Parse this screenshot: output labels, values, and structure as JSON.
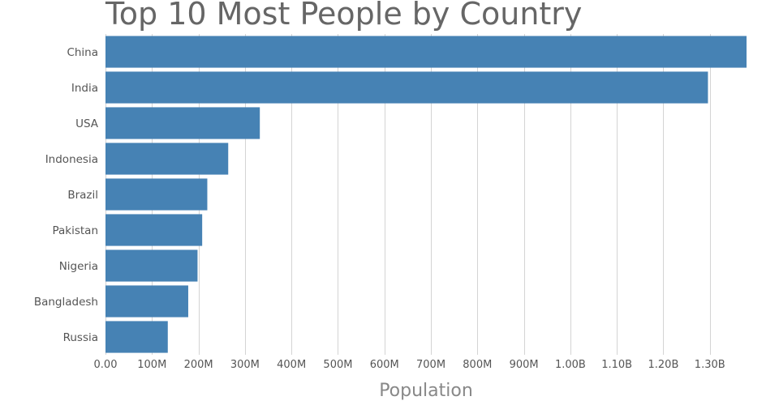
{
  "chart_data": {
    "type": "bar",
    "orientation": "horizontal",
    "title": "Top 10 Most People by Country",
    "xlabel": "Population",
    "ylabel": "",
    "categories": [
      "China",
      "India",
      "USA",
      "Indonesia",
      "Brazil",
      "Pakistan",
      "Nigeria",
      "Bangladesh",
      "Russia"
    ],
    "values": [
      1379000000,
      1296000000,
      332000000,
      264000000,
      219000000,
      208000000,
      198000000,
      178000000,
      134000000
    ],
    "xlim": [
      0,
      1379000000
    ],
    "x_ticks": [
      0,
      100000000,
      200000000,
      300000000,
      400000000,
      500000000,
      600000000,
      700000000,
      800000000,
      900000000,
      1000000000,
      1100000000,
      1200000000,
      1300000000
    ],
    "x_tick_labels": [
      "0.00",
      "100M",
      "200M",
      "300M",
      "400M",
      "500M",
      "600M",
      "700M",
      "800M",
      "900M",
      "1.00B",
      "1.10B",
      "1.20B",
      "1.30B"
    ],
    "grid": "vertical",
    "bar_color": "#4682b4",
    "grid_color": "#d4d4d4"
  }
}
